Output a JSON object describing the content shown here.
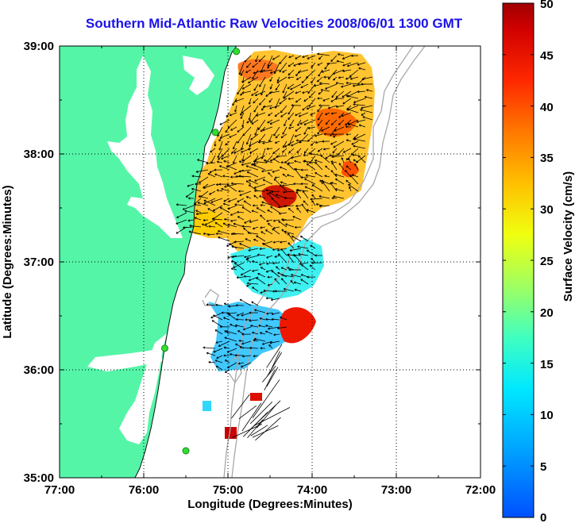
{
  "title": "Southern Mid-Atlantic Raw Velocities 2008/06/01 1300 GMT",
  "axes": {
    "xlabel": "Longitude (Degrees:Minutes)",
    "ylabel": "Latitude (Degrees:Minutes)",
    "xticks": [
      "77:00",
      "76:00",
      "75:00",
      "74:00",
      "73:00",
      "72:00"
    ],
    "yticks": [
      "39:00",
      "38:00",
      "37:00",
      "36:00",
      "35:00"
    ],
    "grid": "dotted",
    "xlim": [
      -77,
      -72
    ],
    "ylim": [
      35,
      39
    ]
  },
  "colorbar": {
    "label": "Surface Velocity (cm/s)",
    "min": 0,
    "max": 50,
    "ticks": [
      "50",
      "45",
      "40",
      "35",
      "30",
      "25",
      "20",
      "15",
      "10",
      "5",
      "0"
    ]
  },
  "colors": {
    "land": "#55f5a8",
    "bathymetry": "#a8a8a8",
    "vectors": "#000000",
    "title": "#1a12e8",
    "stations": "#33dd33"
  },
  "stations": [
    {
      "lon": -74.9,
      "lat": 38.95
    },
    {
      "lon": -75.15,
      "lat": 38.2
    },
    {
      "lon": -75.75,
      "lat": 36.2
    },
    {
      "lon": -75.5,
      "lat": 35.25
    }
  ]
}
